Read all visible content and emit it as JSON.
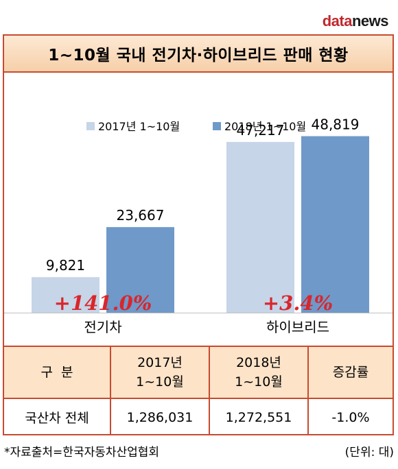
{
  "logo": {
    "part1": "data",
    "part2": "news"
  },
  "title": "1~10월 국내 전기차·하이브리드 판매 현황",
  "chart_data": {
    "type": "bar",
    "categories": [
      "전기차",
      "하이브리드"
    ],
    "series": [
      {
        "name": "2017년 1~10월",
        "values": [
          9821,
          47217
        ],
        "labels": [
          "9,821",
          "47,217"
        ],
        "color": "#c6d5e8"
      },
      {
        "name": "2018년 1~10월",
        "values": [
          23667,
          48819
        ],
        "labels": [
          "23,667",
          "48,819"
        ],
        "color": "#6f99c9"
      }
    ],
    "growth": [
      "+141.0%",
      "+3.4%"
    ],
    "growth_color": "#d9262c",
    "ylim": [
      0,
      55000
    ]
  },
  "table": {
    "headers": [
      "구  분",
      "2017년\n1~10월",
      "2018년\n1~10월",
      "증감률"
    ],
    "rows": [
      [
        "국산차 전체",
        "1,286,031",
        "1,272,551",
        "-1.0%"
      ]
    ]
  },
  "footer": {
    "source": "*자료출처=한국자동차산업협회",
    "unit": "(단위: 대)"
  }
}
